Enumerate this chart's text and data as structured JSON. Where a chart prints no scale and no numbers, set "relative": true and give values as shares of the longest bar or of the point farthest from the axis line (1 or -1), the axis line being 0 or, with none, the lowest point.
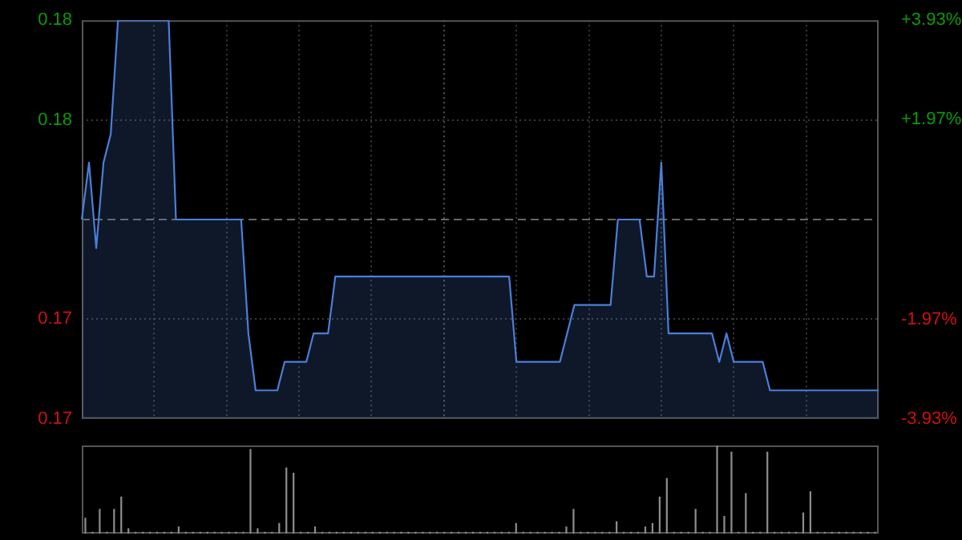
{
  "chart_data": [
    {
      "type": "area",
      "categories": [
        null,
        null,
        null,
        null,
        null,
        null,
        null,
        null,
        null,
        null,
        null,
        null,
        null,
        null,
        null,
        null,
        null,
        null,
        null,
        null,
        null,
        null,
        null,
        null,
        null,
        null,
        null,
        null,
        null,
        null,
        null,
        null,
        null,
        null,
        null,
        null,
        null,
        null,
        null,
        null,
        null,
        null,
        null,
        null,
        null,
        null,
        null,
        null,
        null,
        null,
        null,
        null,
        null,
        null,
        null,
        null,
        null,
        null,
        null,
        null,
        null,
        null,
        null,
        null,
        null,
        null,
        null,
        null,
        null,
        null,
        null,
        null,
        null,
        null,
        null,
        null,
        null,
        null,
        null,
        null,
        null,
        null,
        null,
        null,
        null,
        null,
        null,
        null,
        null,
        null,
        null,
        null,
        null,
        null,
        null,
        null,
        null,
        null,
        null,
        null,
        null,
        null,
        null,
        null,
        null,
        null,
        null,
        null,
        null,
        null,
        null
      ],
      "series": [
        {
          "color": "#4a7fd8",
          "values": [
            0.178,
            0.18,
            0.177,
            0.18,
            0.181,
            0.185,
            0.185,
            0.185,
            0.185,
            0.185,
            0.185,
            0.185,
            0.185,
            0.178,
            0.178,
            0.178,
            0.178,
            0.178,
            0.178,
            0.178,
            0.178,
            0.178,
            0.178,
            0.174,
            0.172,
            0.172,
            0.172,
            0.172,
            0.173,
            0.173,
            0.173,
            0.173,
            0.174,
            0.174,
            0.174,
            0.176,
            0.176,
            0.176,
            0.176,
            0.176,
            0.176,
            0.176,
            0.176,
            0.176,
            0.176,
            0.176,
            0.176,
            0.176,
            0.176,
            0.176,
            0.176,
            0.176,
            0.176,
            0.176,
            0.176,
            0.176,
            0.176,
            0.176,
            0.176,
            0.176,
            0.173,
            0.173,
            0.173,
            0.173,
            0.173,
            0.173,
            0.173,
            0.174,
            0.175,
            0.175,
            0.175,
            0.175,
            0.175,
            0.175,
            0.178,
            0.178,
            0.178,
            0.178,
            0.176,
            0.176,
            0.18,
            0.174,
            0.174,
            0.174,
            0.174,
            0.174,
            0.174,
            0.174,
            0.173,
            0.174,
            0.173,
            0.173,
            0.173,
            0.173,
            0.173,
            0.172,
            0.172,
            0.172,
            0.172,
            0.172,
            0.172,
            0.172,
            0.172,
            0.172,
            0.172,
            0.172,
            0.172,
            0.172,
            0.172,
            0.172,
            0.172
          ]
        }
      ],
      "ylim": [
        0.171,
        0.185
      ],
      "yticks": [
        {
          "value": 0.171,
          "label": "0.17"
        },
        {
          "value": 0.1745,
          "label": "0.17"
        },
        {
          "value": 0.1815,
          "label": "0.18"
        },
        {
          "value": 0.185,
          "label": "0.18"
        }
      ],
      "y2lim": [
        -3.93,
        3.93
      ],
      "y2ticks": [
        {
          "value": -3.93,
          "label": "-3.93%"
        },
        {
          "value": -1.97,
          "label": "-1.97%"
        },
        {
          "value": 1.97,
          "label": "+1.97%"
        },
        {
          "value": 3.93,
          "label": "+3.93%"
        }
      ],
      "ref_lines": [
        {
          "axis": "y",
          "value": 0.178,
          "line_style": "dashed",
          "color": "#666666"
        }
      ],
      "grid": true,
      "tick_labels": "y"
    },
    {
      "type": "bar",
      "relative": true,
      "categories": [
        null,
        null,
        null,
        null,
        null,
        null,
        null,
        null,
        null,
        null,
        null,
        null,
        null,
        null,
        null,
        null,
        null,
        null,
        null,
        null,
        null,
        null,
        null,
        null,
        null,
        null,
        null,
        null,
        null,
        null,
        null,
        null,
        null,
        null,
        null,
        null,
        null,
        null,
        null,
        null,
        null,
        null,
        null,
        null,
        null,
        null,
        null,
        null,
        null,
        null,
        null,
        null,
        null,
        null,
        null,
        null,
        null,
        null,
        null,
        null,
        null,
        null,
        null,
        null,
        null,
        null,
        null,
        null,
        null,
        null,
        null,
        null,
        null,
        null,
        null,
        null,
        null,
        null,
        null,
        null,
        null,
        null,
        null,
        null,
        null,
        null,
        null,
        null,
        null,
        null,
        null,
        null,
        null,
        null,
        null,
        null,
        null,
        null,
        null,
        null,
        null,
        null,
        null,
        null,
        null,
        null,
        null,
        null,
        null,
        null,
        null
      ],
      "series": [
        {
          "color": "#8c8c8c",
          "values": [
            0.18,
            0.02,
            0.28,
            0.02,
            0.28,
            0.42,
            0.06,
            0.02,
            0.02,
            0.02,
            0.02,
            0.02,
            0.02,
            0.08,
            0.02,
            0.02,
            0.02,
            0.02,
            0.02,
            0.02,
            0.02,
            0.02,
            0.02,
            0.96,
            0.06,
            0.02,
            0.02,
            0.12,
            0.75,
            0.69,
            0.02,
            0.02,
            0.08,
            0.02,
            0.02,
            0.02,
            0.02,
            0.02,
            0.02,
            0.02,
            0.02,
            0.02,
            0.02,
            0.02,
            0.02,
            0.02,
            0.02,
            0.02,
            0.02,
            0.02,
            0.02,
            0.02,
            0.02,
            0.02,
            0.02,
            0.02,
            0.02,
            0.02,
            0.02,
            0.02,
            0.12,
            0.02,
            0.02,
            0.02,
            0.02,
            0.02,
            0.02,
            0.08,
            0.28,
            0.02,
            0.02,
            0.02,
            0.02,
            0.02,
            0.14,
            0.02,
            0.02,
            0.02,
            0.08,
            0.12,
            0.42,
            0.63,
            0.02,
            0.02,
            0.02,
            0.28,
            0.02,
            0.02,
            1,
            0.2,
            0.93,
            0.02,
            0.46,
            0.02,
            0.02,
            0.93,
            0.02,
            0.02,
            0.02,
            0.02,
            0.24,
            0.48,
            0.02,
            0.02,
            0.02,
            0.02,
            0.02,
            0.02,
            0.02,
            0.02,
            0.02
          ]
        }
      ],
      "tick_labels": false
    }
  ]
}
